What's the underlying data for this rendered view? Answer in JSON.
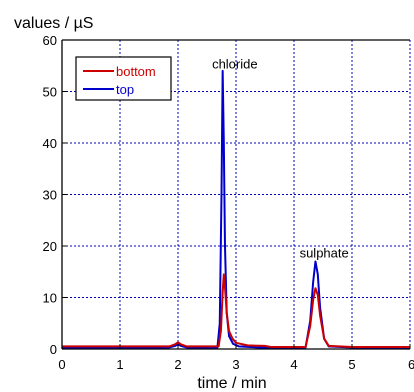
{
  "chart_data": {
    "type": "line",
    "title": "",
    "xlabel": "time / min",
    "ylabel": "values / µS",
    "xlim": [
      0,
      6
    ],
    "ylim": [
      0,
      60
    ],
    "xticks": [
      0,
      1,
      2,
      3,
      4,
      5,
      6
    ],
    "yticks": [
      0,
      10,
      20,
      30,
      40,
      50,
      60
    ],
    "grid": true,
    "legend_position": "top-left",
    "series": [
      {
        "name": "bottom",
        "color": "#cc0000",
        "x": [
          0,
          1.85,
          1.95,
          2.0,
          2.05,
          2.15,
          2.7,
          2.74,
          2.77,
          2.79,
          2.81,
          2.84,
          2.88,
          2.94,
          3.0,
          3.2,
          3.5,
          3.6,
          4.2,
          4.28,
          4.33,
          4.37,
          4.41,
          4.45,
          4.52,
          4.6,
          5.0,
          6.2
        ],
        "y": [
          0.5,
          0.5,
          0.9,
          1.3,
          0.9,
          0.5,
          0.5,
          3.5,
          11.0,
          14.5,
          12.0,
          7.0,
          3.5,
          2.0,
          1.2,
          0.7,
          0.6,
          0.4,
          0.4,
          4.5,
          9.5,
          11.8,
          10.5,
          6.5,
          2.0,
          0.6,
          0.4,
          0.4
        ]
      },
      {
        "name": "top",
        "color": "#0000cc",
        "x": [
          0,
          1.85,
          1.95,
          2.0,
          2.05,
          2.15,
          2.68,
          2.72,
          2.75,
          2.77,
          2.79,
          2.81,
          2.84,
          2.88,
          2.95,
          3.05,
          3.4,
          4.2,
          4.28,
          4.33,
          4.37,
          4.41,
          4.45,
          4.52,
          4.6,
          5.0,
          6.2
        ],
        "y": [
          0.3,
          0.3,
          0.6,
          0.9,
          0.6,
          0.3,
          0.3,
          5.0,
          30.0,
          54.0,
          40.0,
          20.0,
          7.0,
          2.5,
          1.0,
          0.5,
          0.3,
          0.3,
          5.5,
          13.0,
          17.0,
          14.5,
          8.0,
          2.0,
          0.5,
          0.3,
          0.3
        ]
      }
    ],
    "annotations": [
      {
        "text": "chloride",
        "x": 2.98,
        "y": 54.5
      },
      {
        "text": "sulphate",
        "x": 4.52,
        "y": 17.8
      }
    ]
  }
}
